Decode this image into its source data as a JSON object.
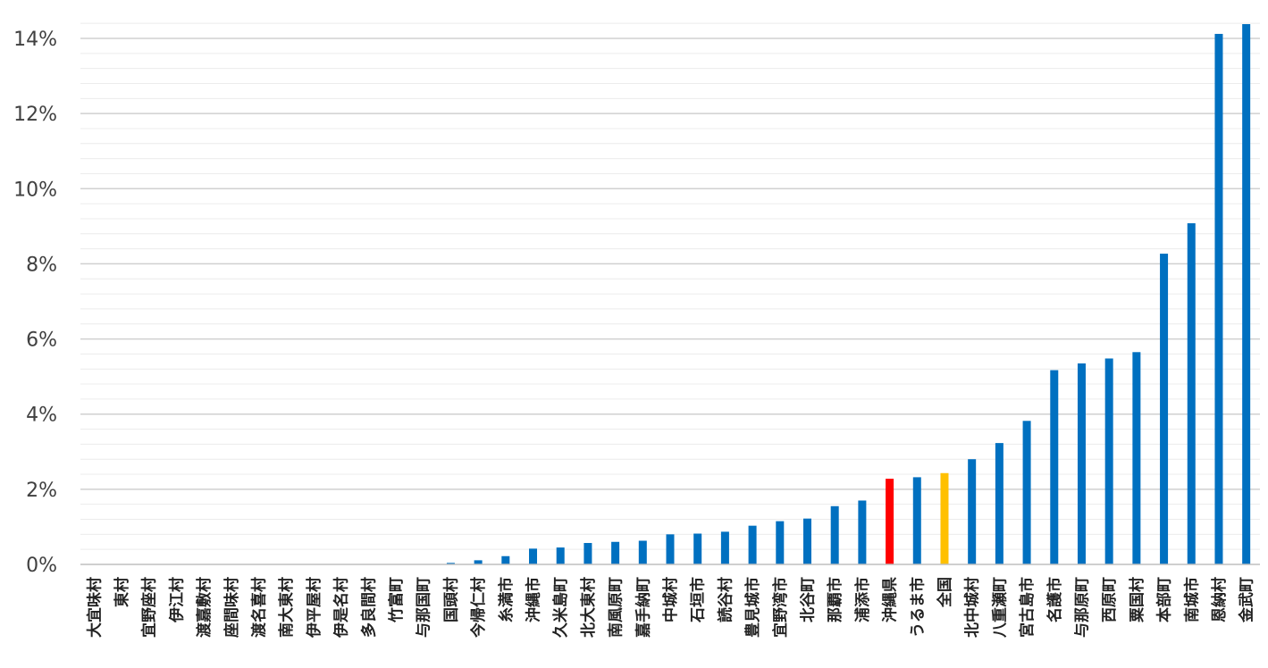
{
  "chart_data": {
    "type": "bar",
    "title": "",
    "xlabel": "",
    "ylabel": "",
    "ylim": [
      0,
      14
    ],
    "y_unit": "%",
    "y_ticks": [
      0,
      2,
      4,
      6,
      8,
      10,
      12,
      14
    ],
    "y_tick_labels": [
      "0%",
      "2%",
      "4%",
      "6%",
      "8%",
      "10%",
      "12%",
      "14%"
    ],
    "grid": true,
    "legend": "none",
    "categories": [
      "大宜味村",
      "東村",
      "宜野座村",
      "伊江村",
      "渡嘉敷村",
      "座間味村",
      "渡名喜村",
      "南大東村",
      "伊平屋村",
      "伊是名村",
      "多良間村",
      "竹富町",
      "与那国町",
      "国頭村",
      "今帰仁村",
      "糸満市",
      "沖縄市",
      "久米島町",
      "北大東村",
      "南風原町",
      "嘉手納町",
      "中城村",
      "石垣市",
      "読谷村",
      "豊見城市",
      "宜野湾市",
      "北谷町",
      "那覇市",
      "浦添市",
      "沖縄県",
      "うるま市",
      "全国",
      "北中城村",
      "八重瀬町",
      "宮古島市",
      "名護市",
      "与那原町",
      "西原町",
      "粟国村",
      "本部町",
      "南城市",
      "恩納村",
      "金武町"
    ],
    "values": [
      0,
      0,
      0,
      0,
      0,
      0,
      0,
      0,
      0,
      0,
      0,
      0,
      0,
      0.04,
      0.11,
      0.22,
      0.42,
      0.45,
      0.57,
      0.6,
      0.63,
      0.8,
      0.82,
      0.87,
      1.03,
      1.15,
      1.22,
      1.55,
      1.7,
      2.28,
      2.32,
      2.43,
      2.8,
      3.23,
      3.82,
      5.17,
      5.35,
      5.48,
      5.65,
      8.27,
      9.08,
      14.12,
      14.38
    ],
    "bar_colors": {
      "default": "#0070C0",
      "沖縄県": "#FF0000",
      "全国": "#FFC000"
    }
  }
}
